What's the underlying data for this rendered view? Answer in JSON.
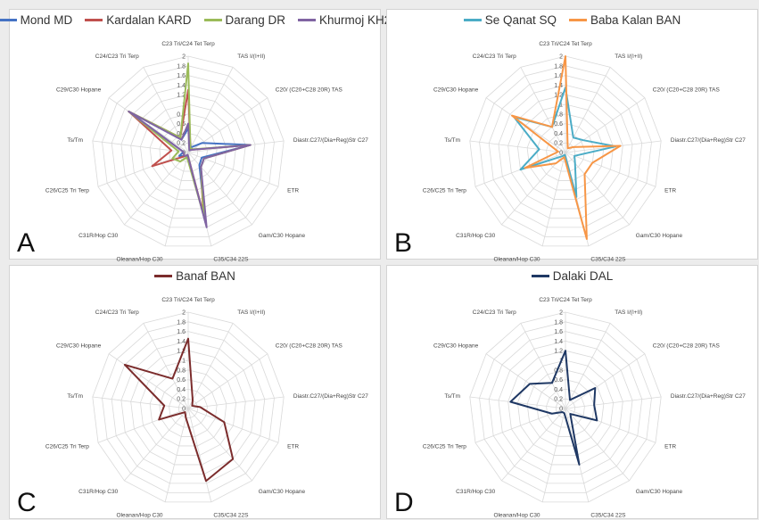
{
  "chart_data": [
    {
      "type": "radar",
      "panel_label": "A",
      "axes": [
        "C23 Tri/C24 Tet Terp",
        "TAS I/(I+II)",
        "C20/ (C20+C28 20R) TAS",
        "Diastr.C27/(Dia+Reg)Str C27",
        "ETR",
        "Gam/C30 Hopane",
        "C35/C34 22S",
        "Oleanan/Hop C30",
        "C31R/Hop C30",
        "C26/C25 Tri Terp",
        "Ts/Tm",
        "C29/C30 Hopane",
        "C24/C23 Tri Terp"
      ],
      "ticks": [
        "0",
        "0.2",
        "0.4",
        "0.6",
        "0.8",
        "1",
        "1.2",
        "1.4",
        "1.6",
        "1.8",
        "2"
      ],
      "rlim": [
        0,
        2
      ],
      "series": [
        {
          "name": "Mond MD",
          "color": "#4472C4",
          "values": [
            0.5,
            0.12,
            0.35,
            1.3,
            0.3,
            0.35,
            1.5,
            0.05,
            0.1,
            0.2,
            0.1,
            1.5,
            0.3
          ]
        },
        {
          "name": "Kardalan KARD",
          "color": "#C0504D",
          "values": [
            1.3,
            0.1,
            0.1,
            1.3,
            0.35,
            0.4,
            1.3,
            0.05,
            0.1,
            0.8,
            0.35,
            1.5,
            0.35
          ]
        },
        {
          "name": "Darang DR",
          "color": "#9BBB59",
          "values": [
            1.85,
            0.1,
            0.12,
            1.3,
            0.35,
            0.4,
            1.35,
            0.1,
            0.25,
            0.35,
            0.2,
            1.5,
            0.35
          ]
        },
        {
          "name": "Khurmoj KH2",
          "color": "#8064A2",
          "values": [
            0.6,
            0.05,
            0.1,
            1.3,
            0.35,
            0.4,
            1.6,
            0.05,
            0.1,
            0.1,
            0.1,
            1.5,
            0.3
          ]
        }
      ]
    },
    {
      "type": "radar",
      "panel_label": "B",
      "axes": [
        "C23 Tri/C24 Tet Terp",
        "TAS I/(I+II)",
        "C20/ (C20+C28 20R) TAS",
        "Diastr.C27/(Dia+Reg)Str C27",
        "ETR",
        "Gam/C30 Hopane",
        "C35/C34 22S",
        "Oleanan/Hop C30",
        "C31R/Hop C30",
        "C26/C25 Tri Terp",
        "Ts/Tm",
        "C29/C30 Hopane",
        "C24/C23 Tri Terp"
      ],
      "ticks": [
        "0",
        "0.2",
        "0.4",
        "0.6",
        "0.8",
        "1",
        "1.2",
        "1.4",
        "1.6",
        "1.8",
        "2"
      ],
      "rlim": [
        0,
        2
      ],
      "series": [
        {
          "name": "Se Qanat SQ",
          "color": "#4BACC6",
          "values": [
            1.35,
            0.35,
            0.45,
            1.05,
            0.2,
            0.3,
            0.95,
            0.05,
            0.1,
            1.0,
            0.55,
            1.3,
            0.6
          ]
        },
        {
          "name": "Baba Kalan BAN",
          "color": "#F79646",
          "values": [
            2.0,
            0.1,
            0.2,
            1.15,
            0.6,
            0.6,
            1.85,
            0.1,
            0.3,
            0.9,
            0.15,
            1.35,
            0.6
          ]
        }
      ]
    },
    {
      "type": "radar",
      "panel_label": "C",
      "axes": [
        "C23 Tri/C24 Tet Terp",
        "TAS I/(I+II)",
        "C20/ (C20+C28 20R) TAS",
        "Diastr.C27/(Dia+Reg)Str C27",
        "ETR",
        "Gam/C30 Hopane",
        "C35/C34 22S",
        "Oleanan/Hop C30",
        "C31R/Hop C30",
        "C26/C25 Tri Terp",
        "Ts/Tm",
        "C29/C30 Hopane",
        "C24/C23 Tri Terp"
      ],
      "ticks": [
        "0",
        "0.2",
        "0.4",
        "0.6",
        "0.8",
        "1",
        "1.2",
        "1.4",
        "1.6",
        "1.8",
        "2"
      ],
      "rlim": [
        0,
        2
      ],
      "series": [
        {
          "name": "Banaf BAN",
          "color": "#7B2C2C",
          "values": [
            1.45,
            0.2,
            0.1,
            0.25,
            0.8,
            1.4,
            1.55,
            0.2,
            0.1,
            0.65,
            0.5,
            1.6,
            0.7
          ]
        }
      ]
    },
    {
      "type": "radar",
      "panel_label": "D",
      "axes": [
        "C23 Tri/C24 Tet Terp",
        "TAS I/(I+II)",
        "C20/ (C20+C28 20R) TAS",
        "Diastr.C27/(Dia+Reg)Str C27",
        "ETR",
        "Gam/C30 Hopane",
        "C35/C34 22S",
        "Oleanan/Hop C30",
        "C31R/Hop C30",
        "C26/C25 Tri Terp",
        "Ts/Tm",
        "C29/C30 Hopane",
        "C24/C23 Tri Terp"
      ],
      "ticks": [
        "0",
        "0.2",
        "0.4",
        "0.6",
        "0.8",
        "1",
        "1.2",
        "1.4",
        "1.6",
        "1.8",
        "2"
      ],
      "rlim": [
        0,
        2
      ],
      "series": [
        {
          "name": "Dalaki DAL",
          "color": "#1F3864",
          "values": [
            1.2,
            0.2,
            0.75,
            0.6,
            0.7,
            0.15,
            1.2,
            0.1,
            0.1,
            0.3,
            1.15,
            0.9,
            0.6
          ]
        }
      ]
    }
  ]
}
